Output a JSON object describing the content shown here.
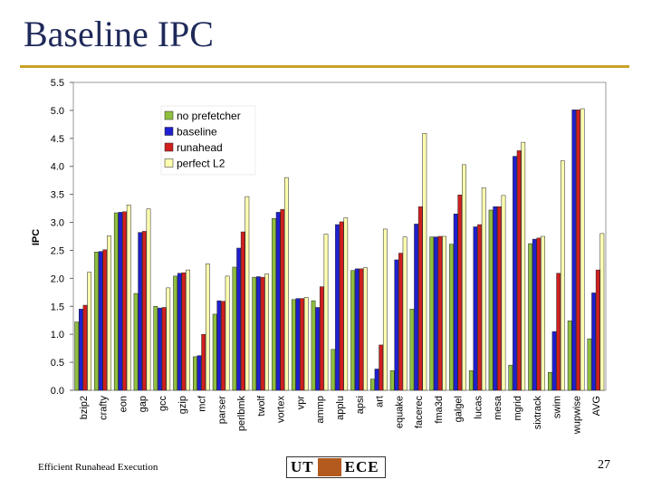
{
  "slide": {
    "title": "Baseline IPC",
    "footer_left": "Efficient Runahead Execution",
    "page_number": "27",
    "logo": {
      "left_text": "UT",
      "right_text": "ECE"
    }
  },
  "colors": {
    "title": "#1f2a5a",
    "rule": "#c9a227",
    "no_prefetcher": "#8fbf3f",
    "baseline": "#1f1fd0",
    "runahead": "#d01f1f",
    "perfect_l2": "#ffffb0"
  },
  "chart_data": {
    "type": "bar",
    "title": "",
    "xlabel": "",
    "ylabel": "IPC",
    "ylim": [
      0,
      5.5
    ],
    "yticks": [
      "0.0",
      "0.5",
      "1.0",
      "1.5",
      "2.0",
      "2.5",
      "3.0",
      "3.5",
      "4.0",
      "4.5",
      "5.0",
      "5.5"
    ],
    "grid": false,
    "legend_position": "top-left",
    "categories": [
      "bzip2",
      "crafty",
      "eon",
      "gap",
      "gcc",
      "gzip",
      "mcf",
      "parser",
      "perlbmk",
      "twolf",
      "vortex",
      "vpr",
      "ammp",
      "applu",
      "apsi",
      "art",
      "equake",
      "facerec",
      "fma3d",
      "galgel",
      "lucas",
      "mesa",
      "mgrid",
      "sixtrack",
      "swim",
      "wupwise",
      "AVG"
    ],
    "series": [
      {
        "name": "no prefetcher",
        "color": "#8fbf3f",
        "values": [
          1.22,
          2.47,
          3.17,
          1.73,
          1.5,
          2.04,
          0.6,
          1.36,
          2.2,
          2.02,
          3.07,
          1.62,
          1.6,
          0.73,
          2.14,
          0.2,
          0.35,
          1.45,
          2.74,
          2.61,
          0.35,
          3.22,
          0.45,
          2.62,
          0.32,
          1.24,
          0.92
        ]
      },
      {
        "name": "baseline",
        "color": "#1f1fd0",
        "values": [
          1.45,
          2.48,
          3.18,
          2.82,
          1.47,
          2.09,
          0.62,
          1.6,
          2.54,
          2.03,
          3.18,
          1.64,
          1.48,
          2.96,
          2.17,
          0.38,
          2.33,
          2.97,
          2.74,
          3.15,
          2.92,
          3.28,
          4.18,
          2.7,
          1.05,
          5.01,
          1.74
        ]
      },
      {
        "name": "runahead",
        "color": "#d01f1f",
        "values": [
          1.52,
          2.51,
          3.19,
          2.84,
          1.48,
          2.1,
          1.0,
          1.59,
          2.83,
          2.02,
          3.23,
          1.64,
          1.85,
          3.01,
          2.17,
          0.81,
          2.45,
          3.28,
          2.75,
          3.49,
          2.96,
          3.28,
          4.28,
          2.72,
          2.09,
          5.01,
          2.15
        ]
      },
      {
        "name": "perfect L2",
        "color": "#ffffb0",
        "values": [
          2.11,
          2.76,
          3.31,
          3.24,
          1.83,
          2.15,
          2.26,
          2.04,
          3.46,
          2.08,
          3.8,
          1.66,
          2.79,
          3.08,
          2.19,
          2.88,
          2.74,
          4.59,
          2.75,
          4.03,
          3.62,
          3.48,
          4.43,
          2.75,
          4.1,
          5.03,
          2.8
        ]
      }
    ]
  }
}
